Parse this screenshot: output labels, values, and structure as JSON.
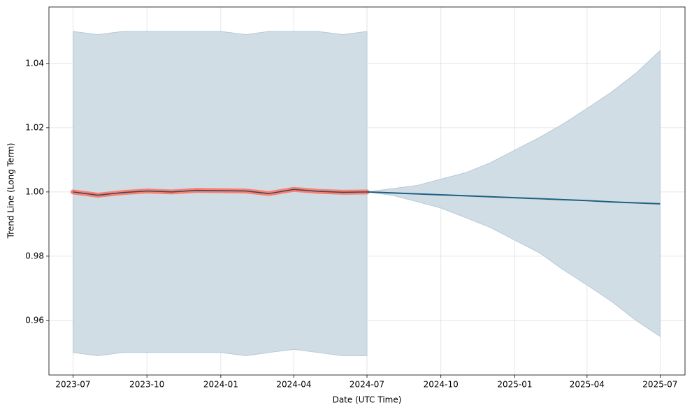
{
  "chart_data": {
    "type": "line",
    "x": [
      "2023-07",
      "2023-08",
      "2023-09",
      "2023-10",
      "2023-11",
      "2023-12",
      "2024-01",
      "2024-02",
      "2024-03",
      "2024-04",
      "2024-05",
      "2024-06",
      "2024-07",
      "2024-08",
      "2024-09",
      "2024-10",
      "2024-11",
      "2024-12",
      "2025-01",
      "2025-02",
      "2025-03",
      "2025-04",
      "2025-05",
      "2025-06",
      "2025-07"
    ],
    "series": [
      {
        "color": "#fa8072",
        "inner_color": "#34495e",
        "values": [
          1.0,
          0.999,
          0.9998,
          1.0003,
          1.0,
          1.0005,
          1.0004,
          1.0003,
          0.9995,
          1.0008,
          1.0002,
          0.9999,
          1.0,
          null,
          null,
          null,
          null,
          null,
          null,
          null,
          null,
          null,
          null,
          null,
          null
        ]
      },
      {
        "color": "#1f5f85",
        "values": [
          null,
          null,
          null,
          null,
          null,
          null,
          null,
          null,
          null,
          null,
          null,
          null,
          1.0,
          0.9997,
          0.9994,
          0.9991,
          0.9988,
          0.9985,
          0.9982,
          0.9979,
          0.9976,
          0.9973,
          0.9969,
          0.9966,
          0.9963
        ]
      }
    ],
    "bands": [
      {
        "color": "#d0dde5",
        "upper": [
          1.05,
          1.049,
          1.05,
          1.05,
          1.05,
          1.05,
          1.05,
          1.049,
          1.05,
          1.05,
          1.05,
          1.049,
          1.05,
          null,
          null,
          null,
          null,
          null,
          null,
          null,
          null,
          null,
          null,
          null,
          null
        ],
        "lower": [
          0.95,
          0.949,
          0.95,
          0.95,
          0.95,
          0.95,
          0.95,
          0.949,
          0.95,
          0.951,
          0.95,
          0.949,
          0.949,
          null,
          null,
          null,
          null,
          null,
          null,
          null,
          null,
          null,
          null,
          null,
          null
        ]
      },
      {
        "color": "#d0dde5",
        "upper": [
          null,
          null,
          null,
          null,
          null,
          null,
          null,
          null,
          null,
          null,
          null,
          null,
          1.0,
          1.001,
          1.002,
          1.004,
          1.006,
          1.009,
          1.013,
          1.017,
          1.021,
          1.026,
          1.031,
          1.037,
          1.044
        ],
        "lower": [
          null,
          null,
          null,
          null,
          null,
          null,
          null,
          null,
          null,
          null,
          null,
          null,
          1.0,
          0.999,
          0.997,
          0.995,
          0.992,
          0.989,
          0.985,
          0.981,
          0.976,
          0.971,
          0.966,
          0.96,
          0.955
        ]
      }
    ],
    "xlabel": "Date (UTC Time)",
    "ylabel": "Trend Line (Long Term)",
    "xlim": [
      "2023-06",
      "2025-08"
    ],
    "xticks": [
      "2023-07",
      "2023-10",
      "2024-01",
      "2024-04",
      "2024-07",
      "2024-10",
      "2025-01",
      "2025-04",
      "2025-07"
    ],
    "ylim": [
      0.943,
      1.0576
    ],
    "yticks": [
      0.96,
      0.98,
      {
        "value": 1,
        "label": "1.00"
      },
      1.02,
      1.04
    ],
    "grid": true
  }
}
